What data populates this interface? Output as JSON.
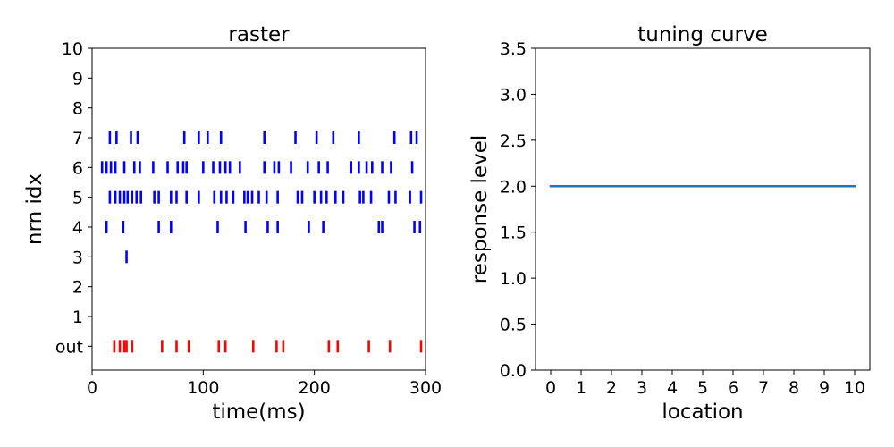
{
  "chart_data": [
    {
      "type": "scatter",
      "title": "raster",
      "xlabel": "time(ms)",
      "ylabel": "nrn idx",
      "xlim": [
        0,
        300
      ],
      "ylim": [
        -0.8,
        10
      ],
      "xticks": [
        "0",
        "100",
        "200",
        "300"
      ],
      "yticks": [
        "out",
        "1",
        "2",
        "3",
        "4",
        "5",
        "6",
        "7",
        "8",
        "9",
        "10"
      ],
      "marker": "vertical-tick",
      "rows": [
        {
          "y": 0,
          "label": "out",
          "color": "#ff0000",
          "times": [
            20,
            25,
            29,
            31,
            36,
            63,
            76,
            87,
            114,
            120,
            145,
            166,
            172,
            213,
            221,
            249,
            268,
            296
          ]
        },
        {
          "y": 3,
          "color": "#0000ff",
          "times": [
            31
          ]
        },
        {
          "y": 4,
          "color": "#0000ff",
          "times": [
            13,
            28,
            60,
            71,
            113,
            138,
            158,
            167,
            195,
            208,
            258,
            261,
            290,
            295
          ]
        },
        {
          "y": 5,
          "color": "#0000ff",
          "times": [
            16,
            21,
            25,
            29,
            32,
            36,
            40,
            44,
            56,
            60,
            71,
            76,
            85,
            96,
            110,
            116,
            121,
            127,
            137,
            140,
            144,
            150,
            157,
            167,
            185,
            189,
            200,
            206,
            211,
            219,
            226,
            241,
            244,
            251,
            267,
            273,
            286,
            296
          ]
        },
        {
          "y": 6,
          "color": "#0000ff",
          "times": [
            9,
            13,
            17,
            21,
            29,
            38,
            43,
            55,
            68,
            77,
            82,
            85,
            100,
            109,
            115,
            120,
            124,
            133,
            155,
            164,
            168,
            179,
            194,
            204,
            212,
            233,
            240,
            247,
            252,
            261,
            269,
            288
          ]
        },
        {
          "y": 7,
          "color": "#0000ff",
          "times": [
            16,
            22,
            35,
            41,
            83,
            96,
            104,
            116,
            155,
            183,
            202,
            217,
            240,
            272,
            287,
            292
          ]
        }
      ]
    },
    {
      "type": "line",
      "title": "tuning curve",
      "xlabel": "location",
      "ylabel": "response level",
      "xlim": [
        -0.5,
        10.5
      ],
      "ylim": [
        0,
        3.5
      ],
      "xticks": [
        "0",
        "1",
        "2",
        "3",
        "4",
        "5",
        "6",
        "7",
        "8",
        "9",
        "10"
      ],
      "yticks": [
        "0.0",
        "0.5",
        "1.0",
        "1.5",
        "2.0",
        "2.5",
        "3.0",
        "3.5"
      ],
      "series": [
        {
          "color": "#1f77b4",
          "x": [
            0,
            1,
            2,
            3,
            4,
            5,
            6,
            7,
            8,
            9,
            10
          ],
          "y": [
            2,
            2,
            2,
            2,
            2,
            2,
            2,
            2,
            2,
            2,
            2
          ]
        }
      ]
    }
  ]
}
